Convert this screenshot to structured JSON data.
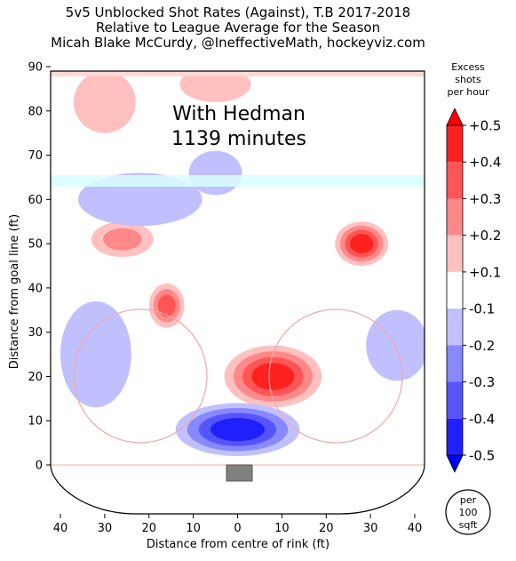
{
  "title": {
    "line1": "5v5 Unblocked Shot Rates (Against), T.B 2017-2018",
    "line2": "Relative to League Average for the Season",
    "line3": "Micah Blake McCurdy, @IneffectiveMath, hockeyviz.com"
  },
  "annotation": {
    "line1": "With Hedman",
    "line2": "1139 minutes"
  },
  "colorbar": {
    "title": [
      "Excess",
      "shots",
      "per hour"
    ],
    "ticks": [
      "+0.5",
      "+0.4",
      "+0.3",
      "+0.2",
      "+0.1",
      "-0.1",
      "-0.2",
      "-0.3",
      "-0.4",
      "-0.5"
    ],
    "colors": [
      "#ff2020",
      "#ff5555",
      "#ff8888",
      "#ffc0c0",
      "#ffffff",
      "#c0c0ff",
      "#8888ff",
      "#5555ff",
      "#2020ff"
    ],
    "over_color": "#ff0000",
    "under_color": "#0000ff"
  },
  "unit_badge": [
    "per",
    "100",
    "sqft"
  ],
  "chart_data": {
    "type": "heatmap",
    "title": "5v5 Unblocked Shot Rates (Against), T.B 2017-2018",
    "xlabel": "Distance from centre of rink (ft)",
    "ylabel": "Distance from goal line (ft)",
    "xlim": [
      -42,
      42
    ],
    "ylim": [
      -11,
      90
    ],
    "x_ticks": [
      -40,
      -30,
      -20,
      -10,
      0,
      10,
      20,
      30,
      40
    ],
    "x_tick_labels": [
      "40",
      "30",
      "20",
      "10",
      "0",
      "10",
      "20",
      "30",
      "40"
    ],
    "y_ticks": [
      0,
      10,
      20,
      30,
      40,
      50,
      60,
      70,
      80,
      90
    ],
    "y_tick_labels": [
      "0",
      "10",
      "20",
      "30",
      "40",
      "50",
      "60",
      "70",
      "80",
      "90"
    ],
    "value_range": [
      -0.5,
      0.5
    ],
    "regions": [
      {
        "label": "slot hot spot",
        "x": 8,
        "y": 20,
        "rx": 11,
        "ry": 7,
        "value": 0.45
      },
      {
        "label": "right point hot spot",
        "x": 28,
        "y": 50,
        "rx": 6,
        "ry": 5,
        "value": 0.45
      },
      {
        "label": "left faceoff area",
        "x": -16,
        "y": 36,
        "rx": 4,
        "ry": 5,
        "value": 0.35
      },
      {
        "label": "left point",
        "x": -26,
        "y": 51,
        "rx": 7,
        "ry": 4,
        "value": 0.25
      },
      {
        "label": "top left",
        "x": -30,
        "y": 82,
        "rx": 7,
        "ry": 7,
        "value": 0.15
      },
      {
        "label": "top centre",
        "x": -5,
        "y": 86,
        "rx": 8,
        "ry": 4,
        "value": 0.15
      },
      {
        "label": "crease cold spot",
        "x": 0,
        "y": 8,
        "rx": 14,
        "ry": 6,
        "value": -0.5
      },
      {
        "label": "left boards",
        "x": -32,
        "y": 25,
        "rx": 8,
        "ry": 12,
        "value": -0.15
      },
      {
        "label": "left point blue",
        "x": -22,
        "y": 60,
        "rx": 14,
        "ry": 6,
        "value": -0.15
      },
      {
        "label": "centre high blue",
        "x": -5,
        "y": 66,
        "rx": 6,
        "ry": 5,
        "value": -0.15
      },
      {
        "label": "right boards blue",
        "x": 36,
        "y": 27,
        "rx": 7,
        "ry": 8,
        "value": -0.2
      }
    ]
  }
}
